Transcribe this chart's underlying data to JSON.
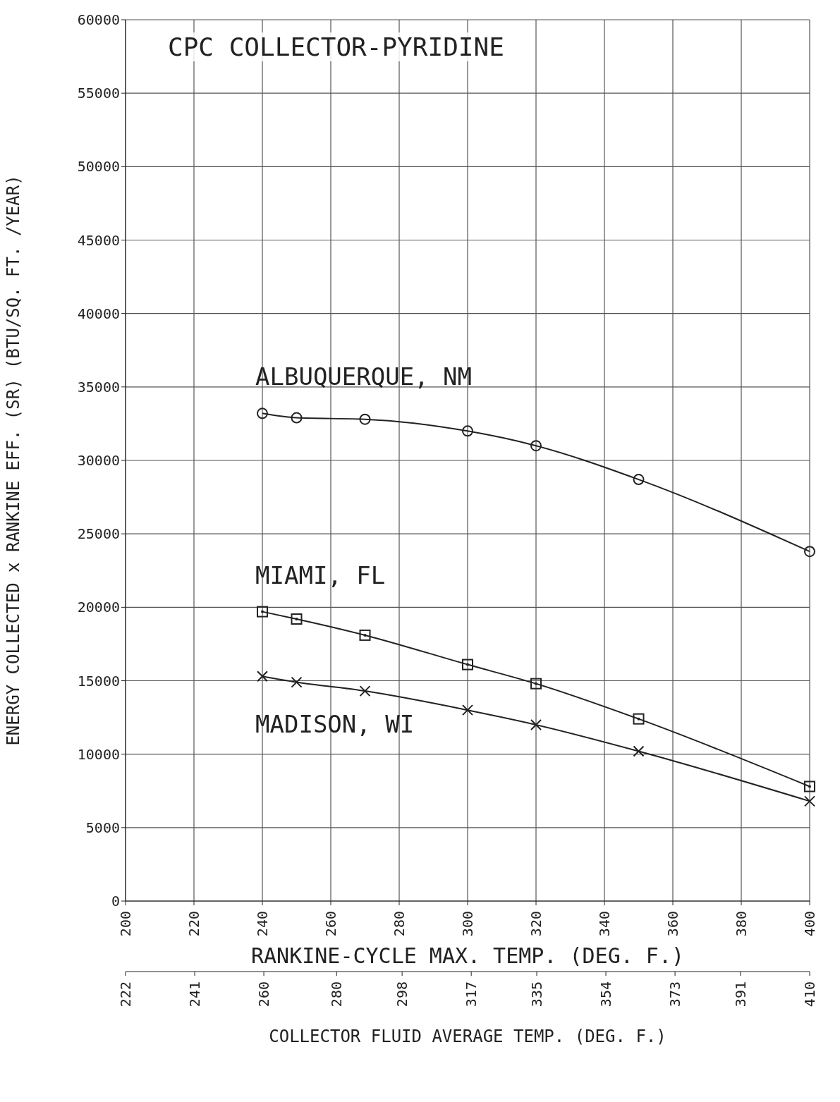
{
  "chart_data": {
    "type": "line",
    "title": "CPC COLLECTOR-PYRIDINE",
    "xlabel": "RANKINE-CYCLE MAX. TEMP. (DEG. F.)",
    "ylabel": "ENERGY COLLECTED x RANKINE EFF. (SR) (BTU/SQ. FT. /YEAR)",
    "x2label": "COLLECTOR FLUID AVERAGE TEMP. (DEG. F.)",
    "x": [
      240,
      250,
      270,
      300,
      320,
      350,
      400
    ],
    "series": [
      {
        "name": "ALBUQUERQUE, NM",
        "color": "#222222",
        "marker": "circle",
        "values": [
          33200,
          32900,
          32800,
          32000,
          31000,
          28700,
          23800
        ]
      },
      {
        "name": "MIAMI, FL",
        "color": "#222222",
        "marker": "square",
        "values": [
          19700,
          19200,
          18100,
          16100,
          14800,
          12400,
          7800
        ]
      },
      {
        "name": "MADISON, WI",
        "color": "#222222",
        "marker": "cross",
        "values": [
          15300,
          14900,
          14300,
          13000,
          12000,
          10200,
          6800
        ]
      }
    ],
    "xlim": [
      200,
      400
    ],
    "xticks": [
      200,
      220,
      240,
      260,
      280,
      300,
      320,
      340,
      360,
      380,
      400
    ],
    "x2lim": [
      222,
      410
    ],
    "x2ticks": [
      222,
      241,
      260,
      280,
      298,
      317,
      335,
      354,
      373,
      391,
      410
    ],
    "ylim": [
      0,
      60000
    ],
    "yticks": [
      0,
      5000,
      10000,
      15000,
      20000,
      25000,
      30000,
      35000,
      40000,
      45000,
      50000,
      55000,
      60000
    ],
    "grid": true,
    "legend": false,
    "line_style": "solid"
  }
}
